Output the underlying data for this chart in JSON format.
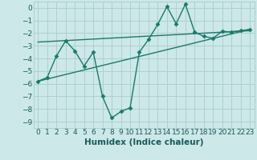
{
  "xlabel": "Humidex (Indice chaleur)",
  "background_color": "#cce8e8",
  "line_color": "#1a7a6a",
  "grid_color": "#b0d0d0",
  "font_color": "#1a5a5a",
  "xlim": [
    -0.5,
    23.5
  ],
  "ylim": [
    -9.5,
    0.5
  ],
  "yticks": [
    0,
    -1,
    -2,
    -3,
    -4,
    -5,
    -6,
    -7,
    -8,
    -9
  ],
  "xticks": [
    0,
    1,
    2,
    3,
    4,
    5,
    6,
    7,
    8,
    9,
    10,
    11,
    12,
    13,
    14,
    15,
    16,
    17,
    18,
    19,
    20,
    21,
    22,
    23
  ],
  "series1_x": [
    0,
    1,
    2,
    3,
    4,
    5,
    6,
    7,
    8,
    9,
    10,
    11,
    12,
    13,
    14,
    15,
    16,
    17,
    18,
    19,
    20,
    21,
    22,
    23
  ],
  "series1_y": [
    -5.8,
    -5.5,
    -3.8,
    -2.6,
    -3.4,
    -4.6,
    -3.5,
    -7.0,
    -8.7,
    -8.2,
    -7.9,
    -3.5,
    -2.5,
    -1.3,
    0.1,
    -1.25,
    0.3,
    -1.9,
    -2.25,
    -2.4,
    -1.85,
    -1.9,
    -1.8,
    -1.7
  ],
  "series2_x": [
    0,
    23
  ],
  "series2_y": [
    -2.7,
    -1.8
  ],
  "series3_x": [
    0,
    23
  ],
  "series3_y": [
    -5.8,
    -1.7
  ],
  "marker": "D",
  "markersize": 2.5,
  "linewidth": 1.0,
  "font_size": 6.5,
  "xlabel_fontsize": 7.5
}
